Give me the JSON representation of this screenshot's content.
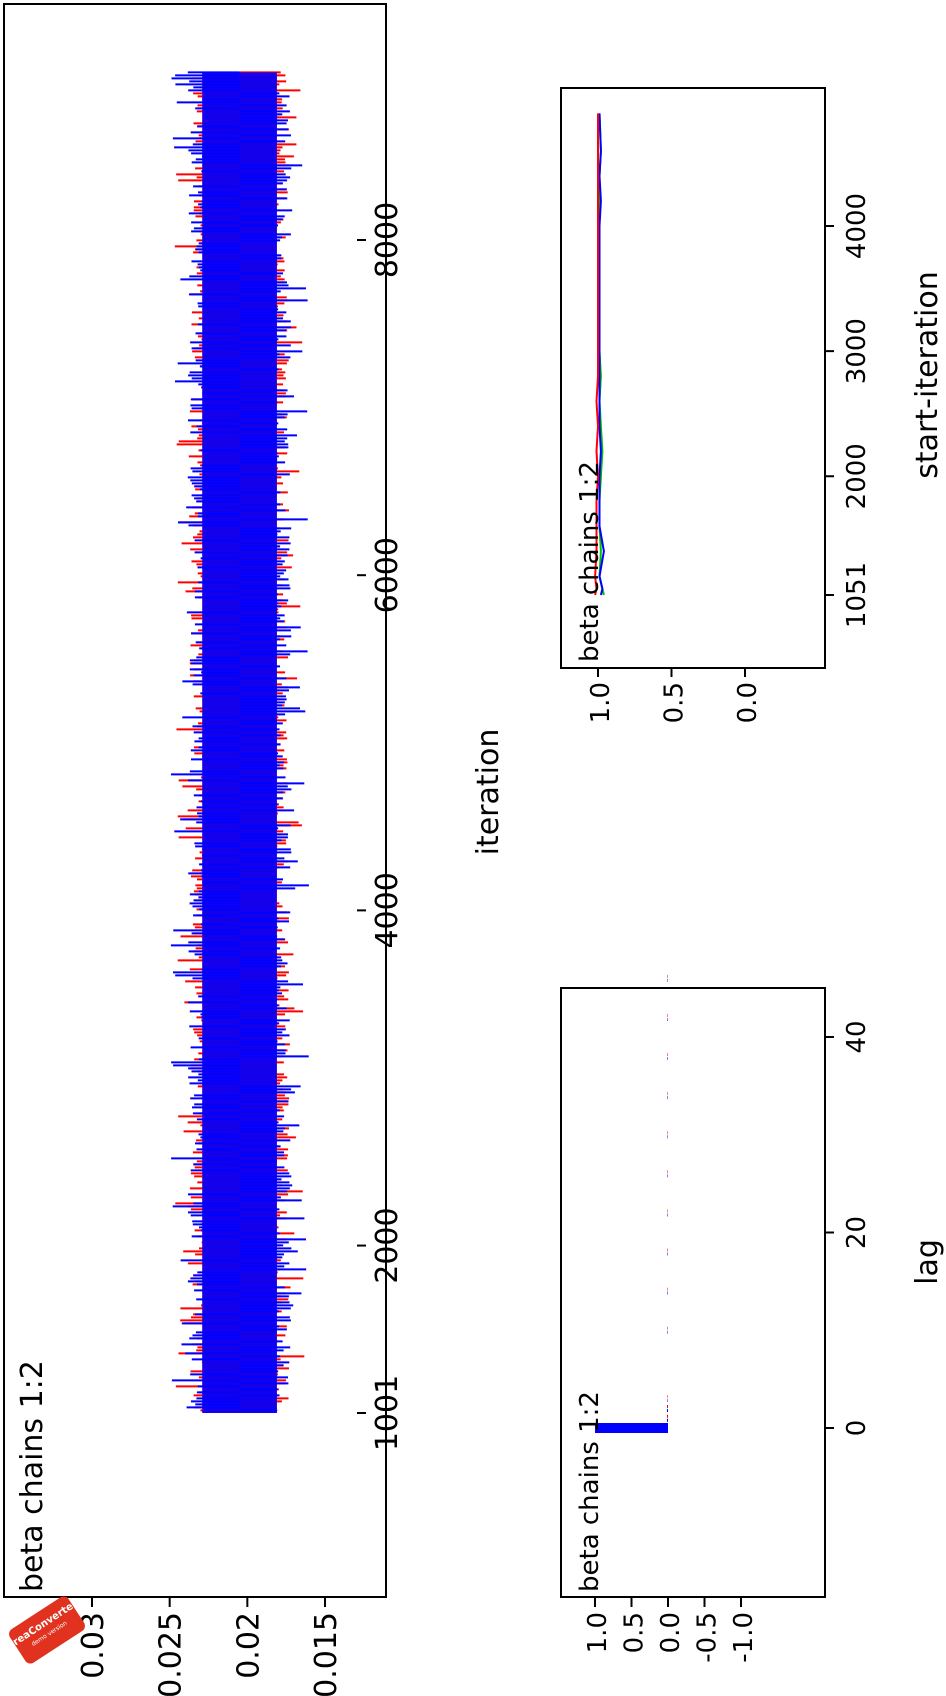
{
  "watermark": {
    "name": "reaConverter",
    "sub": "demo version"
  },
  "chart_data": [
    {
      "type": "line",
      "title": "beta chains 1:2",
      "xlabel": "iteration",
      "ylabel": "",
      "xlim": [
        1001,
        9000
      ],
      "ylim": [
        0.014,
        0.033
      ],
      "xticks": [
        "1001",
        "2000",
        "4000",
        "6000",
        "8000"
      ],
      "yticks": [
        "0.015",
        "0.02",
        "0.025",
        "0.03"
      ],
      "series": [
        {
          "color": "#ff0000",
          "center": 0.0205,
          "band": 0.0024,
          "spike_max": 0.0042,
          "x_start": 1001,
          "x_end": 9000
        },
        {
          "color": "#0000ff",
          "center": 0.0205,
          "band": 0.0024,
          "spike_max": 0.0045,
          "x_start": 1001,
          "x_end": 9000
        }
      ]
    },
    {
      "type": "bar",
      "title": "beta chains 1:2",
      "xlabel": "lag",
      "ylabel": "",
      "xlim": [
        -2,
        52
      ],
      "ylim": [
        -1.15,
        1.15
      ],
      "xticks": [
        "0",
        "20",
        "40"
      ],
      "yticks": [
        "1.0",
        "0.5",
        "0.0",
        "-0.5",
        "-1.0"
      ],
      "lags": [
        0,
        1,
        2,
        3,
        10,
        14,
        18,
        22,
        26,
        30,
        34,
        38,
        42,
        46
      ],
      "series": [
        {
          "color": "#ff0000",
          "values": [
            1.0,
            0.02,
            0.01,
            0.0,
            0.0,
            0.0,
            0.0,
            0.0,
            0.0,
            0.0,
            0.0,
            0.0,
            0.0,
            0.0
          ]
        },
        {
          "color": "#0000ff",
          "values": [
            1.0,
            0.03,
            0.01,
            0.0,
            0.0,
            0.0,
            0.0,
            0.0,
            0.0,
            0.0,
            0.0,
            0.0,
            0.0,
            0.0
          ]
        }
      ]
    },
    {
      "type": "line",
      "title": "beta chains 1:2",
      "xlabel": "start-iteration",
      "ylabel": "",
      "xlim": [
        750,
        5300
      ],
      "ylim": [
        -0.08,
        1.55
      ],
      "xticks": [
        "1051",
        "2000",
        "3000",
        "4000"
      ],
      "yticks": [
        "1.0",
        "0.5",
        "0.0"
      ],
      "series": [
        {
          "color": "#00c000",
          "x": [
            1051,
            1100,
            1200,
            1400,
            1600,
            1800,
            2000,
            2200,
            2400,
            2600,
            2800,
            3000,
            3200,
            3400,
            3600,
            3800,
            4000,
            4200,
            4400,
            4600,
            4900
          ],
          "y": [
            0.96,
            0.97,
            0.99,
            0.98,
            0.99,
            0.99,
            0.98,
            0.97,
            0.98,
            0.99,
            0.98,
            0.99,
            0.99,
            0.99,
            0.99,
            0.99,
            0.99,
            0.99,
            0.99,
            0.98,
            0.99
          ]
        },
        {
          "color": "#0000ff",
          "x": [
            1051,
            1100,
            1200,
            1400,
            1600,
            1800,
            2000,
            2200,
            2400,
            2600,
            2800,
            3000,
            3200,
            3400,
            3600,
            3800,
            4000,
            4200,
            4400,
            4600,
            4900
          ],
          "y": [
            0.98,
            0.97,
            0.99,
            0.96,
            0.99,
            0.99,
            0.99,
            0.98,
            0.99,
            0.99,
            0.99,
            0.99,
            0.99,
            0.99,
            0.99,
            0.99,
            0.99,
            0.98,
            0.99,
            0.98,
            0.99
          ]
        },
        {
          "color": "#ff0000",
          "x": [
            1051,
            1100,
            1200,
            1400,
            1600,
            1800,
            2000,
            2200,
            2400,
            2600,
            2800,
            3000,
            3200,
            3400,
            3600,
            3800,
            4000,
            4200,
            4400,
            4600,
            4900
          ],
          "y": [
            1.02,
            1.01,
            1.02,
            1.01,
            1.01,
            1.01,
            1.0,
            1.01,
            1.0,
            1.01,
            1.0,
            1.0,
            1.0,
            1.0,
            1.0,
            1.0,
            1.0,
            1.0,
            1.0,
            1.0,
            1.0
          ]
        }
      ]
    }
  ]
}
